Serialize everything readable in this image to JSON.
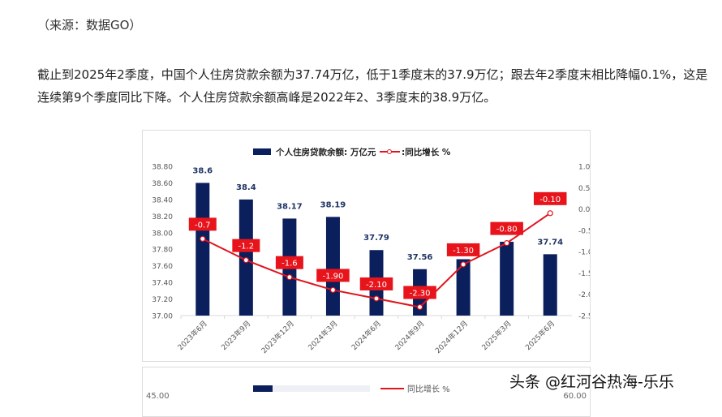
{
  "article": {
    "source": "（来源：数据GO）",
    "paragraph": "截止到2025年2季度，中国个人住房贷款余额为37.74万亿，低于1季度末的37.9万亿；跟去年2季度末相比降幅0.1%，这是连续第9个季度同比下降。个人住房贷款余额高峰是2022年2、3季度末的38.9万亿。"
  },
  "chart_data": {
    "type": "bar+line",
    "categories": [
      "2023年6月",
      "2023年9月",
      "2023年12月",
      "2024年3月",
      "2024年6月",
      "2024年9月",
      "2024年12月",
      "2025年3月",
      "2025年6月"
    ],
    "series": [
      {
        "name": "个人住房贷款余额: 万亿元",
        "type": "bar",
        "axis": "left",
        "color": "#0a1f5c",
        "values": [
          38.6,
          38.4,
          38.17,
          38.19,
          37.79,
          37.56,
          37.68,
          37.89,
          37.74
        ],
        "labels": [
          "38.6",
          "38.4",
          "38.17",
          "38.19",
          "37.79",
          "37.56",
          null,
          null,
          "37.74"
        ]
      },
      {
        "name": ":同比增长 %",
        "type": "line",
        "axis": "right",
        "color": "#e0141e",
        "values": [
          -0.7,
          -1.2,
          -1.6,
          -1.9,
          -2.1,
          -2.3,
          -1.3,
          -0.8,
          -0.1
        ],
        "labels": [
          "-0.7",
          "-1.2",
          "-1.6",
          "-1.90",
          "-2.10",
          "-2.30",
          "-1.30",
          "-0.80",
          "-0.10"
        ]
      }
    ],
    "left_axis": {
      "range": [
        37.0,
        38.8
      ],
      "ticks": [
        "37.00",
        "37.20",
        "37.40",
        "37.60",
        "37.80",
        "38.00",
        "38.20",
        "38.40",
        "38.60",
        "38.80"
      ]
    },
    "right_axis": {
      "range": [
        -2.5,
        1.0
      ],
      "ticks": [
        "-2.50",
        "-2.00",
        "-1.50",
        "-1.00",
        "-0.50",
        "0.00",
        "0.50",
        "1.00"
      ]
    },
    "legend_position": "top",
    "grid": false
  },
  "second_chart": {
    "legend_line": "同比增长 %",
    "left_tick": "45.00",
    "right_tick": "60.00"
  },
  "watermark": "头条 @红河谷热海-乐乐"
}
